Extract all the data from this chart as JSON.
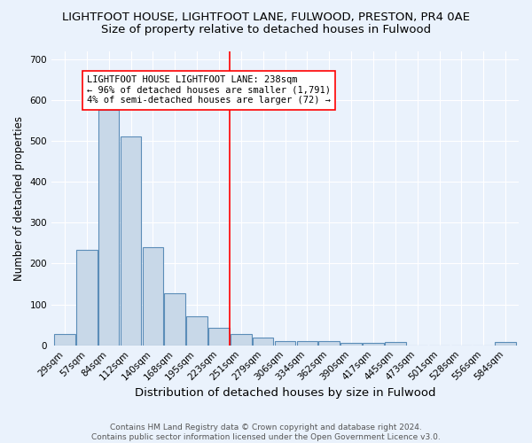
{
  "title": "LIGHTFOOT HOUSE, LIGHTFOOT LANE, FULWOOD, PRESTON, PR4 0AE",
  "subtitle": "Size of property relative to detached houses in Fulwood",
  "xlabel": "Distribution of detached houses by size in Fulwood",
  "ylabel": "Number of detached properties",
  "footer1": "Contains HM Land Registry data © Crown copyright and database right 2024.",
  "footer2": "Contains public sector information licensed under the Open Government Licence v3.0.",
  "categories": [
    "29sqm",
    "57sqm",
    "84sqm",
    "112sqm",
    "140sqm",
    "168sqm",
    "195sqm",
    "223sqm",
    "251sqm",
    "279sqm",
    "306sqm",
    "334sqm",
    "362sqm",
    "390sqm",
    "417sqm",
    "445sqm",
    "473sqm",
    "501sqm",
    "528sqm",
    "556sqm",
    "584sqm"
  ],
  "values": [
    27,
    233,
    575,
    510,
    240,
    127,
    72,
    43,
    27,
    18,
    10,
    11,
    10,
    5,
    5,
    8,
    0,
    0,
    0,
    0,
    7
  ],
  "bar_color": "#c8d8e8",
  "bar_edge_color": "#5b8db8",
  "vline_color": "red",
  "vline_position": 7.5,
  "annotation_line1": "LIGHTFOOT HOUSE LIGHTFOOT LANE: 238sqm",
  "annotation_line2": "← 96% of detached houses are smaller (1,791)",
  "annotation_line3": "4% of semi-detached houses are larger (72) →",
  "annotation_box_color": "white",
  "annotation_box_edge_color": "red",
  "ylim": [
    0,
    720
  ],
  "yticks": [
    0,
    100,
    200,
    300,
    400,
    500,
    600,
    700
  ],
  "bg_color": "#eaf2fc",
  "plot_bg_color": "#eaf2fc",
  "grid_color": "white",
  "title_fontsize": 9.5,
  "subtitle_fontsize": 9.5,
  "xlabel_fontsize": 9.5,
  "ylabel_fontsize": 8.5,
  "tick_fontsize": 7.5,
  "annotation_fontsize": 7.5,
  "footer_fontsize": 6.5
}
